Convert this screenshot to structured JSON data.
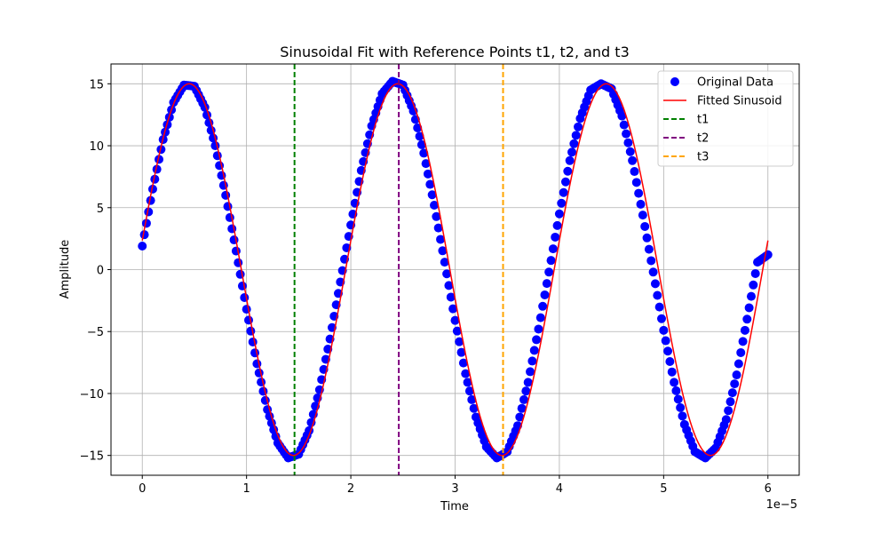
{
  "chart_data": {
    "type": "scatter",
    "title": "Sinusoidal Fit with Reference Points t1, t2, and t3",
    "xlabel": "Time",
    "ylabel": "Amplitude",
    "x_offset_label": "1e−5",
    "xlim": [
      -0.3,
      6.3
    ],
    "ylim": [
      -16.6,
      16.6
    ],
    "xticks": [
      0,
      1,
      2,
      3,
      4,
      5,
      6
    ],
    "xtick_labels": [
      "0",
      "1",
      "2",
      "3",
      "4",
      "5",
      "6"
    ],
    "yticks": [
      -15,
      -10,
      -5,
      0,
      5,
      10,
      15
    ],
    "ytick_labels": [
      "−15",
      "−10",
      "−5",
      "0",
      "5",
      "10",
      "15"
    ],
    "grid": true,
    "legend_position": "top-right",
    "series": [
      {
        "name": "Original Data",
        "kind": "scatter",
        "color": "#0000ff",
        "x": [
          0.0,
          0.1,
          0.2,
          0.3,
          0.4,
          0.5,
          0.6,
          0.7,
          0.8,
          0.9,
          1.0,
          1.1,
          1.2,
          1.3,
          1.4,
          1.5,
          1.6,
          1.7,
          1.8,
          1.9,
          2.0,
          2.1,
          2.2,
          2.3,
          2.4,
          2.5,
          2.6,
          2.7,
          2.8,
          2.9,
          3.0,
          3.1,
          3.2,
          3.3,
          3.4,
          3.5,
          3.6,
          3.7,
          3.8,
          3.9,
          4.0,
          4.1,
          4.2,
          4.3,
          4.4,
          4.5,
          4.6,
          4.7,
          4.8,
          4.9,
          5.0,
          5.1,
          5.2,
          5.3,
          5.4,
          5.5,
          5.6,
          5.7,
          5.8,
          5.9,
          6.0
        ],
        "y": [
          1.9,
          6.5,
          10.5,
          13.5,
          14.9,
          14.8,
          13.1,
          10.0,
          6.0,
          1.5,
          -3.2,
          -7.6,
          -11.3,
          -14.0,
          -15.2,
          -14.9,
          -13.0,
          -9.7,
          -5.6,
          -1.0,
          3.6,
          8.0,
          11.6,
          14.2,
          15.2,
          14.9,
          12.8,
          9.4,
          5.2,
          0.6,
          -4.1,
          -8.4,
          -11.9,
          -14.3,
          -15.2,
          -14.7,
          -12.6,
          -9.1,
          -4.8,
          -0.2,
          4.5,
          8.8,
          12.2,
          14.5,
          15.0,
          14.6,
          12.4,
          8.8,
          4.4,
          -0.2,
          -4.9,
          -9.1,
          -12.5,
          -14.7,
          -15.2,
          -14.4,
          -12.1,
          -8.5,
          -4.0,
          0.6,
          1.2
        ]
      },
      {
        "name": "Fitted Sinusoid",
        "kind": "line",
        "color": "#ff0000",
        "amplitude": 15.0,
        "period": 2.0,
        "peak_at": 0.45
      }
    ],
    "reference_lines": [
      {
        "name": "t1",
        "x": 1.46,
        "color": "#008000"
      },
      {
        "name": "t2",
        "x": 2.46,
        "color": "#800080"
      },
      {
        "name": "t3",
        "x": 3.46,
        "color": "#ffa500"
      }
    ]
  }
}
